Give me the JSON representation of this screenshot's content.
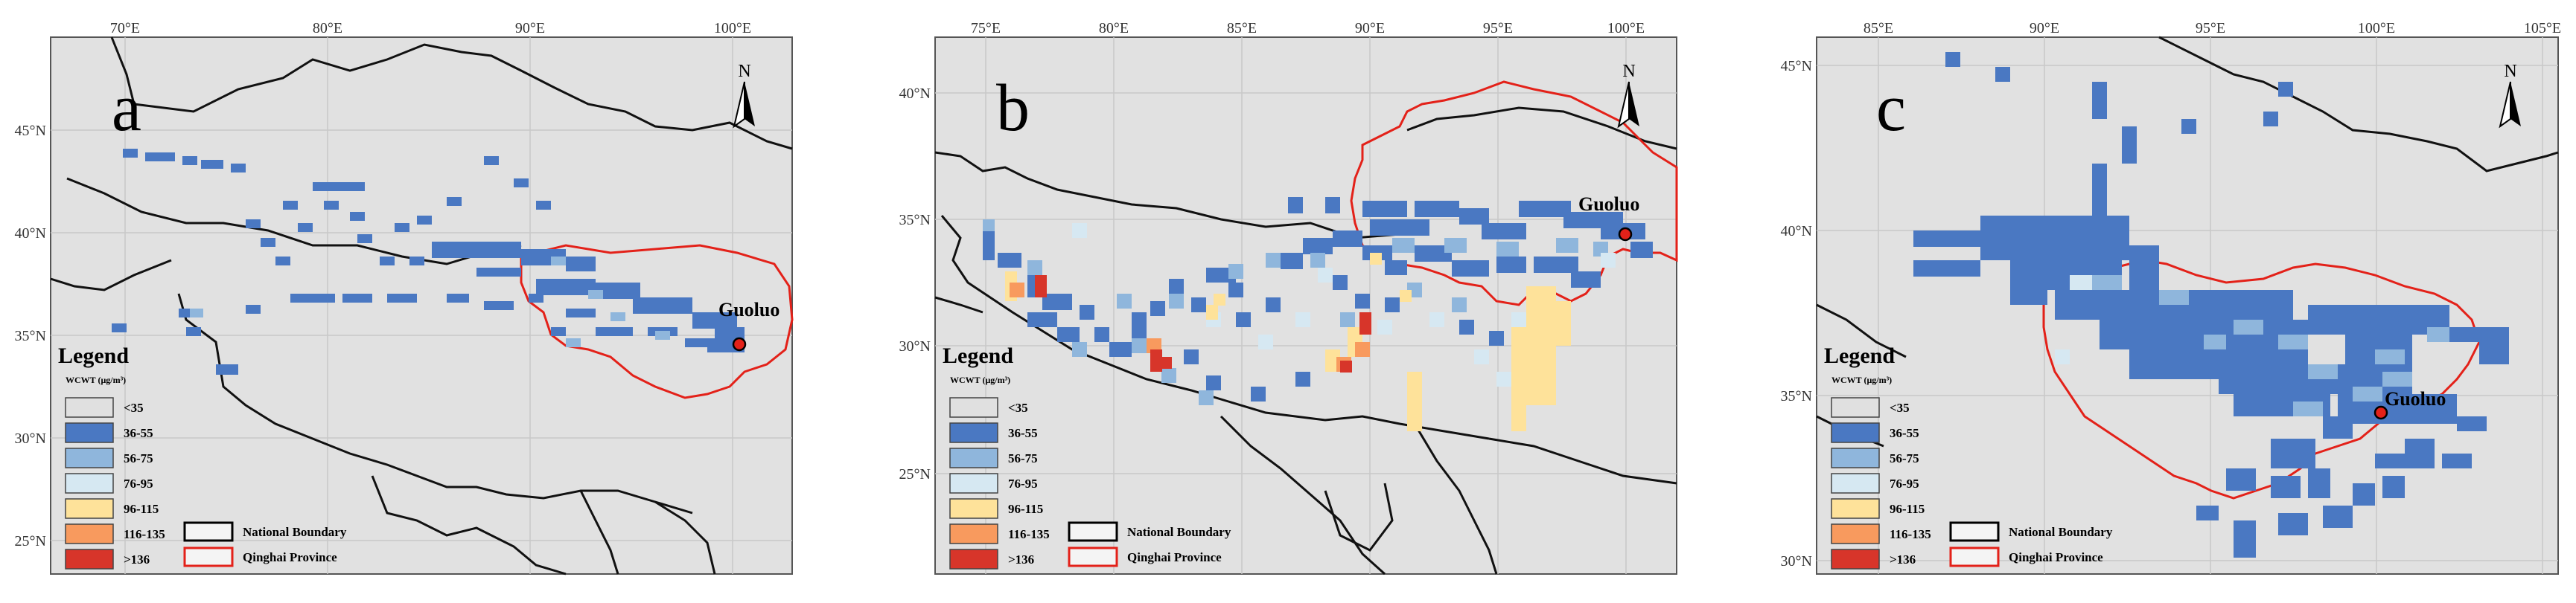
{
  "panels": [
    {
      "letter": "a",
      "lon_ticks": [
        "70°E",
        "80°E",
        "90°E",
        "100°E"
      ],
      "lat_ticks": [
        "45°N",
        "40°N",
        "35°N",
        "30°N",
        "25°N"
      ],
      "city": "Guoluo",
      "north": "N"
    },
    {
      "letter": "b",
      "lon_ticks": [
        "75°E",
        "80°E",
        "85°E",
        "90°E",
        "95°E",
        "100°E"
      ],
      "lat_ticks": [
        "40°N",
        "35°N",
        "30°N",
        "25°N"
      ],
      "city": "Guoluo",
      "north": "N"
    },
    {
      "letter": "c",
      "lon_ticks": [
        "85°E",
        "90°E",
        "95°E",
        "100°E",
        "105°E"
      ],
      "lat_ticks": [
        "45°N",
        "40°N",
        "35°N",
        "30°N"
      ],
      "city": "Guoluo",
      "north": "N"
    }
  ],
  "legend": {
    "title": "Legend",
    "subtitle": "WCWT (μg/m³)",
    "classes": [
      {
        "label": "<35",
        "color": "#e0e0e0"
      },
      {
        "label": "36-55",
        "color": "#4a78c2"
      },
      {
        "label": "56-75",
        "color": "#8fb6dc"
      },
      {
        "label": "76-95",
        "color": "#d6e8f2"
      },
      {
        "label": "96-115",
        "color": "#fee29a"
      },
      {
        "label": "116-135",
        "color": "#f89a5e"
      },
      {
        "label": ">136",
        "color": "#d7352a"
      }
    ],
    "boundary_items": [
      {
        "label": "National Boundary",
        "color": "#000000"
      },
      {
        "label": "Qinghai Province",
        "color": "#e32119"
      }
    ]
  }
}
